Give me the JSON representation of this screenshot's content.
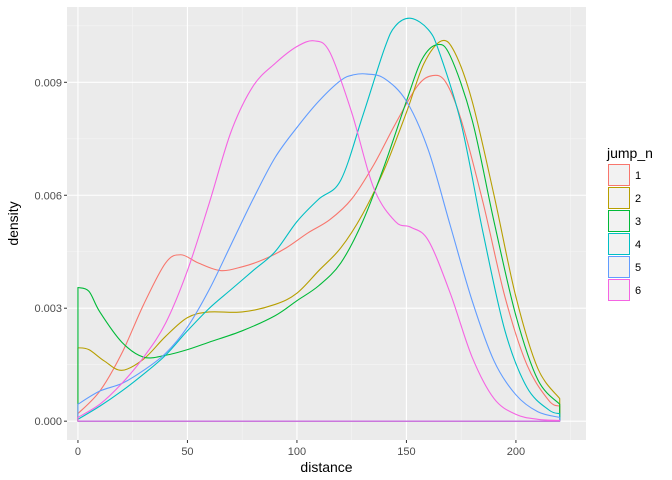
{
  "chart_data": {
    "type": "area",
    "xlabel": "distance",
    "ylabel": "density",
    "xlim": [
      -5,
      232
    ],
    "ylim": [
      -0.0005,
      0.011
    ],
    "x_ticks": [
      0,
      50,
      100,
      150,
      200
    ],
    "y_ticks": [
      0.0,
      0.003,
      0.006,
      0.009
    ],
    "y_tick_labels": [
      "0.000",
      "0.003",
      "0.006",
      "0.009"
    ],
    "grid": true,
    "legend": {
      "title": "jump_n",
      "position": "right"
    },
    "series": [
      {
        "name": "1",
        "color": "#F8766D",
        "x": [
          0,
          10,
          20,
          30,
          40,
          47,
          55,
          65,
          75,
          85,
          95,
          105,
          115,
          125,
          135,
          145,
          155,
          162,
          168,
          175,
          185,
          195,
          205,
          215,
          220
        ],
        "y": [
          0.0002,
          0.0008,
          0.0018,
          0.0031,
          0.0042,
          0.00442,
          0.0042,
          0.004,
          0.0041,
          0.0043,
          0.0046,
          0.005,
          0.00535,
          0.0059,
          0.0068,
          0.0079,
          0.0089,
          0.00918,
          0.009,
          0.008,
          0.0058,
          0.0033,
          0.0015,
          0.00055,
          0.0004
        ]
      },
      {
        "name": "2",
        "color": "#B79F00",
        "x": [
          0,
          5,
          12,
          20,
          30,
          40,
          50,
          60,
          75,
          90,
          100,
          110,
          120,
          130,
          140,
          150,
          158,
          166,
          172,
          180,
          190,
          200,
          210,
          220
        ],
        "y": [
          0.00195,
          0.0019,
          0.0016,
          0.00135,
          0.00165,
          0.00225,
          0.00275,
          0.0029,
          0.0029,
          0.0031,
          0.0034,
          0.004,
          0.0046,
          0.0055,
          0.0067,
          0.0082,
          0.0095,
          0.0101,
          0.0098,
          0.0085,
          0.006,
          0.0033,
          0.0014,
          0.0006
        ]
      },
      {
        "name": "3",
        "color": "#00BA38",
        "x": [
          0,
          5,
          10,
          20,
          30,
          40,
          50,
          60,
          75,
          90,
          100,
          110,
          120,
          130,
          140,
          150,
          157,
          164,
          170,
          180,
          190,
          200,
          210,
          220
        ],
        "y": [
          0.00355,
          0.00345,
          0.0029,
          0.0021,
          0.0017,
          0.00175,
          0.0019,
          0.0021,
          0.0024,
          0.0028,
          0.0032,
          0.0036,
          0.0042,
          0.0053,
          0.0068,
          0.0085,
          0.0096,
          0.01,
          0.0097,
          0.008,
          0.0053,
          0.0028,
          0.0011,
          0.00045
        ]
      },
      {
        "name": "4",
        "color": "#00BFC4",
        "x": [
          0,
          10,
          20,
          30,
          40,
          50,
          60,
          70,
          80,
          90,
          100,
          110,
          120,
          130,
          140,
          145,
          152,
          160,
          165,
          175,
          185,
          195,
          205,
          215,
          220
        ],
        "y": [
          5e-05,
          0.0004,
          0.0008,
          0.00125,
          0.00175,
          0.0024,
          0.003,
          0.0035,
          0.004,
          0.0045,
          0.0053,
          0.0059,
          0.0064,
          0.0081,
          0.0099,
          0.0105,
          0.0107,
          0.0104,
          0.0098,
          0.0079,
          0.005,
          0.0024,
          0.0009,
          0.0003,
          0.0002
        ]
      },
      {
        "name": "5",
        "color": "#619CFF",
        "x": [
          0,
          10,
          20,
          30,
          40,
          50,
          60,
          70,
          80,
          90,
          100,
          110,
          120,
          126,
          132,
          140,
          150,
          160,
          170,
          180,
          190,
          200,
          210,
          220
        ],
        "y": [
          0.00045,
          0.0008,
          0.001,
          0.00135,
          0.0018,
          0.0025,
          0.0035,
          0.0047,
          0.0059,
          0.007,
          0.0078,
          0.0085,
          0.00905,
          0.0092,
          0.00922,
          0.0091,
          0.0085,
          0.0072,
          0.0052,
          0.0032,
          0.0016,
          0.0007,
          0.00025,
          0.0001
        ]
      },
      {
        "name": "6",
        "color": "#F564E3",
        "x": [
          0,
          10,
          20,
          30,
          40,
          50,
          60,
          70,
          80,
          90,
          100,
          108,
          115,
          125,
          135,
          145,
          152,
          160,
          170,
          180,
          190,
          200,
          210,
          220
        ],
        "y": [
          0.0001,
          0.00045,
          0.001,
          0.0017,
          0.0026,
          0.004,
          0.0058,
          0.0077,
          0.0089,
          0.0095,
          0.00995,
          0.0101,
          0.0098,
          0.0082,
          0.0062,
          0.0053,
          0.00515,
          0.0048,
          0.0034,
          0.0017,
          0.0006,
          0.00018,
          5e-05,
          2e-05
        ]
      }
    ]
  }
}
